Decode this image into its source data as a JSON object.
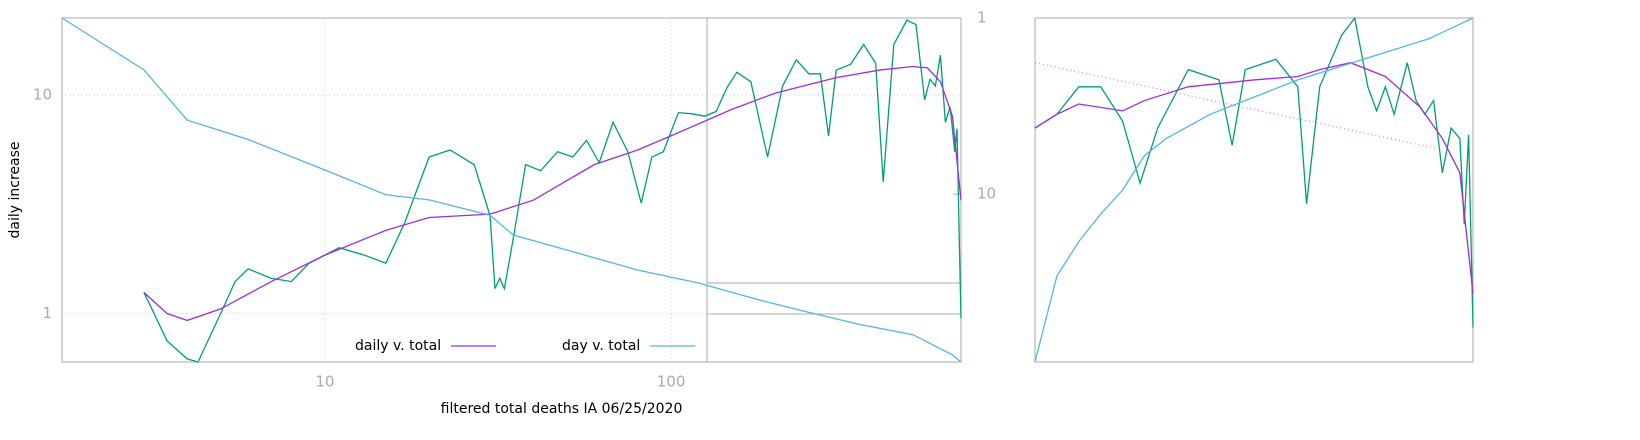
{
  "chart_data": [
    {
      "type": "line",
      "xlabel": "filtered total deaths IA 06/25/2020",
      "ylabel": "daily increase",
      "xlim": [
        1.74,
        688
      ],
      "ylim": [
        0.6,
        22.5
      ],
      "y2lim": [
        90,
        1
      ],
      "xticks": [
        10,
        100
      ],
      "yticks": [
        1,
        10
      ],
      "y2ticks": [
        1,
        10
      ],
      "log_x": true,
      "log_y": true,
      "log_y2": true,
      "grid": true,
      "legend": "bottom",
      "series": [
        {
          "color": "#009e73",
          "x": [
            3,
            3.5,
            4,
            4.3,
            5,
            5.5,
            6,
            7,
            8,
            9,
            11,
            13,
            15,
            17,
            20,
            23,
            27,
            30,
            31,
            32,
            33,
            35,
            38,
            42,
            47,
            52,
            57,
            62,
            68,
            75,
            82,
            88,
            95,
            105,
            115,
            125,
            135,
            145,
            155,
            170,
            190,
            210,
            230,
            250,
            270,
            285,
            300,
            330,
            360,
            390,
            410,
            440,
            480,
            510,
            540,
            560,
            580,
            600,
            620,
            640,
            660,
            670,
            680,
            688
          ],
          "values": [
            1.25,
            0.75,
            0.62,
            0.6,
            1.0,
            1.4,
            1.6,
            1.45,
            1.4,
            1.7,
            2.0,
            1.85,
            1.7,
            2.6,
            5.2,
            5.6,
            4.8,
            2.8,
            1.3,
            1.45,
            1.3,
            2.2,
            4.8,
            4.5,
            5.5,
            5.2,
            6.2,
            4.9,
            7.5,
            5.5,
            3.2,
            5.2,
            5.5,
            8.3,
            8.2,
            8.0,
            8.4,
            10.8,
            12.7,
            11.5,
            5.2,
            11,
            14.5,
            12.5,
            12.5,
            6.5,
            13,
            13.8,
            17,
            14,
            4,
            17,
            22,
            21,
            9.5,
            11.8,
            11,
            15.2,
            7.5,
            8.8,
            5.5,
            7,
            2.2,
            0.95
          ]
        },
        {
          "name": "daily v. total",
          "color": "#9b30d9",
          "x": [
            3,
            3.5,
            4,
            5,
            7,
            10,
            15,
            20,
            30,
            40,
            60,
            80,
            100,
            150,
            200,
            300,
            400,
            500,
            550,
            600,
            650,
            688
          ],
          "values": [
            1.25,
            1.0,
            0.93,
            1.05,
            1.4,
            1.85,
            2.4,
            2.75,
            2.85,
            3.3,
            4.8,
            5.6,
            6.5,
            8.6,
            10.2,
            12,
            13,
            13.5,
            13.3,
            11.5,
            8,
            3.3
          ]
        },
        {
          "name": "day v. total",
          "color": "#56b4e9",
          "axis": "y2",
          "x": [
            1.74,
            3,
            4,
            6,
            10,
            15,
            20,
            30,
            35,
            50,
            80,
            120,
            180,
            250,
            350,
            500,
            650,
            688
          ],
          "values": [
            1,
            1.97,
            3.8,
            4.9,
            7.3,
            10.1,
            10.8,
            13.2,
            17.1,
            20.8,
            27,
            32,
            40,
            47,
            55,
            63,
            82,
            90
          ]
        }
      ]
    },
    {
      "type": "line",
      "xlim": [
        0,
        100
      ],
      "ylim": [
        0,
        100
      ],
      "series": [
        {
          "color": "#e07be0",
          "dash": "dotted",
          "x": [
            0,
            92
          ],
          "values": [
            87,
            62
          ]
        },
        {
          "color": "#009e73",
          "x": [
            0,
            5,
            10,
            15,
            20,
            24,
            28,
            35,
            42,
            45,
            48,
            55,
            60,
            62,
            65,
            70,
            73,
            76,
            78,
            80,
            82,
            85,
            87,
            89,
            91,
            93,
            95,
            97,
            98,
            99,
            100
          ],
          "values": [
            68,
            72,
            80,
            80,
            70,
            52,
            68,
            85,
            82,
            63,
            85,
            88,
            80,
            46,
            80,
            95,
            100,
            80,
            73,
            80,
            72,
            87,
            76,
            72,
            76,
            55,
            68,
            65,
            40,
            66,
            10
          ]
        },
        {
          "color": "#9b30d9",
          "x": [
            0,
            5,
            10,
            20,
            25,
            35,
            50,
            60,
            65,
            72,
            80,
            88,
            93,
            97,
            100
          ],
          "values": [
            68,
            72,
            75,
            73,
            76,
            80,
            82,
            83,
            85,
            87,
            83,
            74,
            65,
            55,
            20
          ]
        },
        {
          "color": "#56b4e9",
          "x": [
            0,
            5,
            10,
            15,
            20,
            25,
            30,
            40,
            50,
            60,
            70,
            80,
            90,
            95,
            100
          ],
          "values": [
            0,
            25,
            35,
            43,
            50,
            60,
            65,
            72,
            77,
            82,
            86,
            90,
            94,
            97,
            100
          ]
        }
      ]
    }
  ]
}
